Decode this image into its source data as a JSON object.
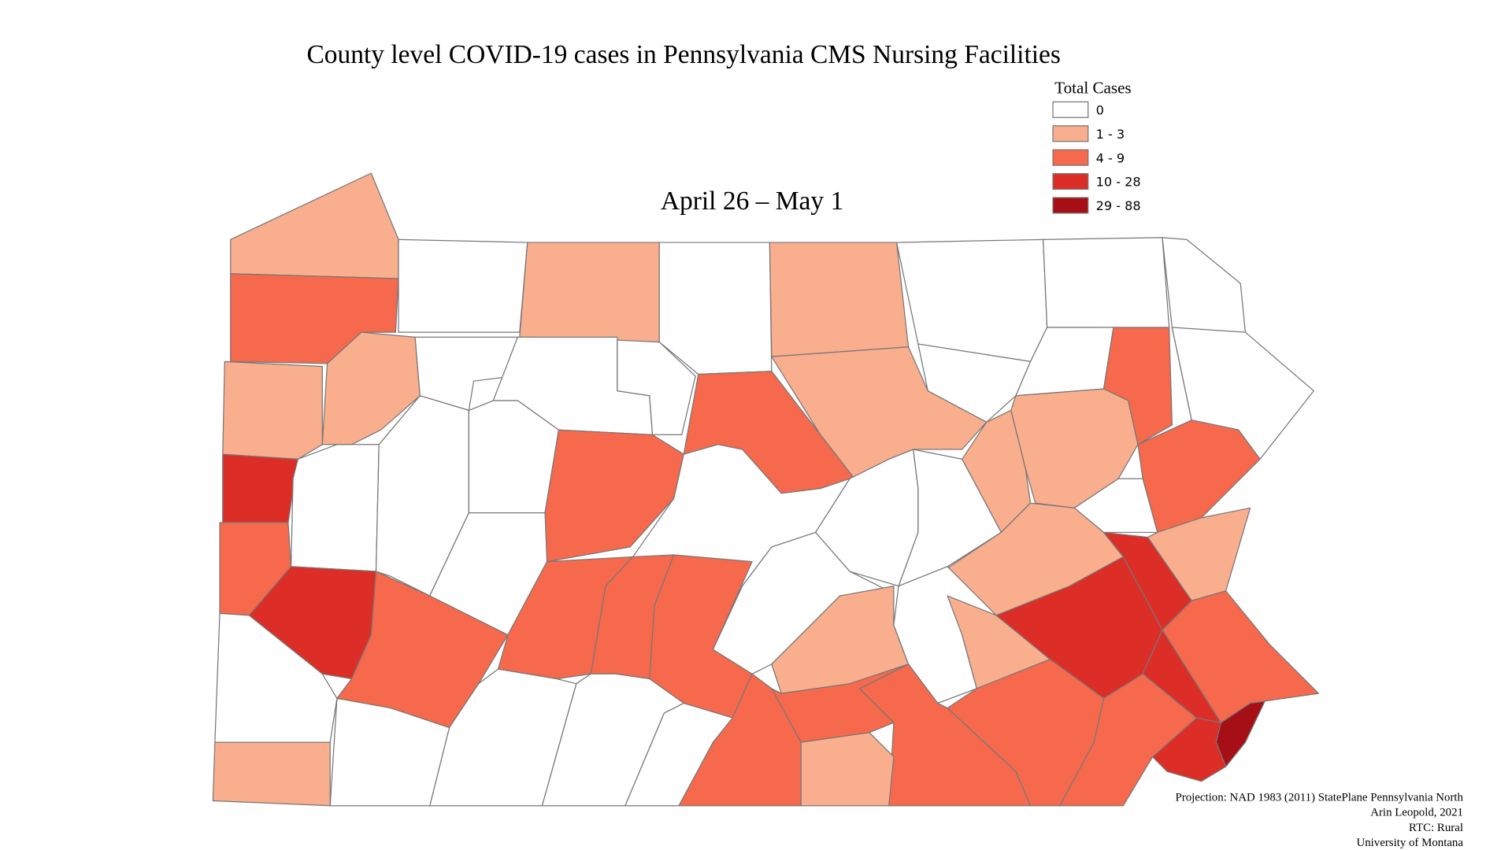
{
  "header": {
    "title": "County level COVID-19 cases in Pennsylvania CMS Nursing Facilities",
    "subtitle": "April 26 – May 1"
  },
  "legend": {
    "title": "Total Cases",
    "items": [
      {
        "label": "0",
        "color": "#ffffff"
      },
      {
        "label": "1 - 3",
        "color": "#f9ae8e"
      },
      {
        "label": "4 - 9",
        "color": "#f7694c"
      },
      {
        "label": "10 - 28",
        "color": "#dc2d27"
      },
      {
        "label": "29 - 88",
        "color": "#a50f15"
      }
    ]
  },
  "credits": [
    "Projection: NAD 1983 (2011) StatePlane Pennsylvania North",
    "Arin Leopold, 2021",
    "RTC: Rural",
    "University of Montana"
  ]
}
